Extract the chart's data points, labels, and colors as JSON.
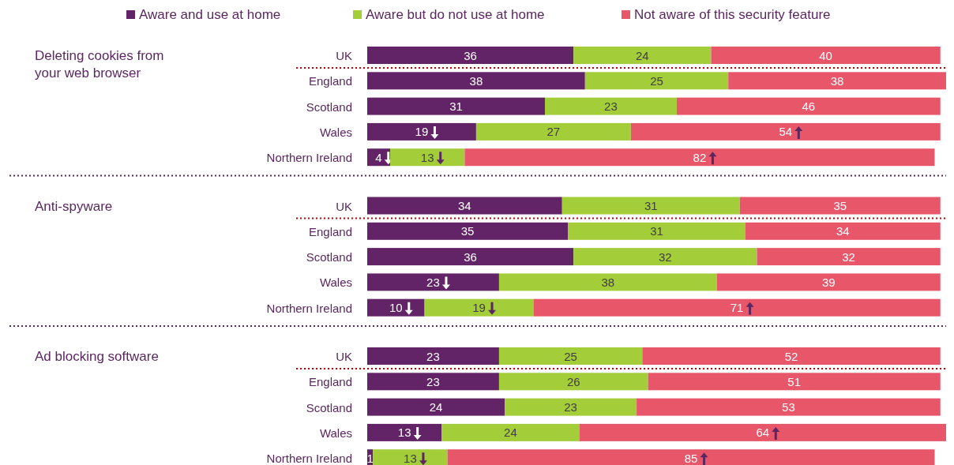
{
  "chart_data": {
    "type": "bar",
    "orientation": "horizontal",
    "stacked": true,
    "legend": "top",
    "data_labels": true,
    "annotations": [
      "Deleting cookies from your web browser",
      "Anti-spyware",
      "Ad blocking software"
    ],
    "categories": [
      "UK",
      "England",
      "Scotland",
      "Wales",
      "Northern Ireland",
      "UK",
      "England",
      "Scotland",
      "Wales",
      "Northern Ireland",
      "UK",
      "England",
      "Scotland",
      "Wales",
      "Northern Ireland"
    ],
    "series": [
      {
        "name": "Aware and use at home",
        "color": "#622466",
        "values": [
          36,
          38,
          31,
          19,
          4,
          34,
          35,
          36,
          23,
          10,
          23,
          23,
          24,
          13,
          1
        ]
      },
      {
        "name": "Aware but do not use at home",
        "color": "#a3cd39",
        "values": [
          24,
          25,
          23,
          27,
          13,
          31,
          31,
          32,
          38,
          19,
          25,
          26,
          23,
          24,
          13
        ]
      },
      {
        "name": "Not aware of this security feature",
        "color": "#e8566a",
        "values": [
          40,
          38,
          46,
          54,
          82,
          35,
          34,
          32,
          39,
          71,
          52,
          51,
          53,
          64,
          85
        ]
      }
    ]
  }
}
